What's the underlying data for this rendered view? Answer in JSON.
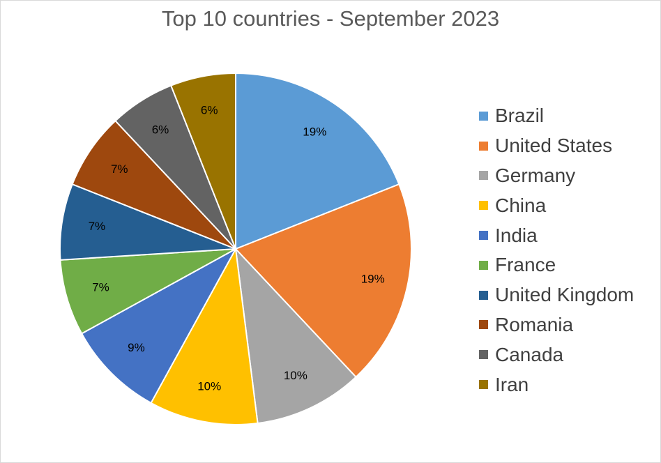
{
  "chart_data": {
    "type": "pie",
    "title": "Top 10 countries - September 2023",
    "categories": [
      "Brazil",
      "United States",
      "Germany",
      "China",
      "India",
      "France",
      "United Kingdom",
      "Romania",
      "Canada",
      "Iran"
    ],
    "values": [
      19,
      19,
      10,
      10,
      9,
      7,
      7,
      7,
      6,
      6
    ],
    "labels": [
      "19%",
      "19%",
      "10%",
      "10%",
      "9%",
      "7%",
      "7%",
      "7%",
      "6%",
      "6%"
    ],
    "colors": [
      "#5b9bd5",
      "#ed7d31",
      "#a5a5a5",
      "#ffc000",
      "#4472c4",
      "#70ad47",
      "#255e91",
      "#9e480e",
      "#636363",
      "#997300"
    ],
    "legend_position": "right"
  }
}
